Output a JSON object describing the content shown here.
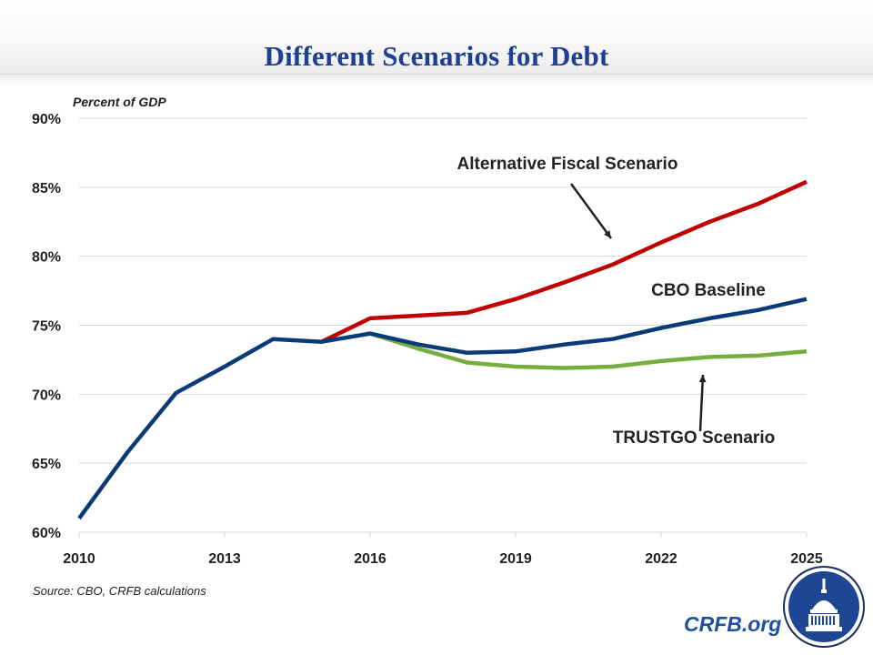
{
  "header": {
    "title": "Different Scenarios for Debt"
  },
  "footer": {
    "source": "Source: CBO, CRFB calculations",
    "brand": "CRFB.org",
    "logo_icon": "capitol-dome-logo-icon"
  },
  "colors": {
    "title": "#1f3f8f",
    "afs": "#c00000",
    "baseline": "#0b3a78",
    "trustgo": "#77ad3f",
    "grid": "#d9d9d9",
    "brand": "#1f4fa0"
  },
  "chart_data": {
    "type": "line",
    "title": "Different Scenarios for Debt",
    "ylabel": "Percent of GDP",
    "xlabel": "",
    "xlim": [
      2010,
      2025
    ],
    "ylim": [
      60,
      90
    ],
    "x_ticks": [
      "2010",
      "2013",
      "2016",
      "2019",
      "2022",
      "2025"
    ],
    "y_ticks": [
      "60%",
      "65%",
      "70%",
      "75%",
      "80%",
      "85%",
      "90%"
    ],
    "grid": true,
    "legend": "none (inline annotations)",
    "series": [
      {
        "name": "Alternative Fiscal Scenario",
        "color": "#c00000",
        "x": [
          2015,
          2016,
          2017,
          2018,
          2019,
          2020,
          2021,
          2022,
          2023,
          2024,
          2025
        ],
        "values": [
          73.8,
          75.5,
          75.7,
          75.9,
          76.9,
          78.1,
          79.4,
          81.0,
          82.5,
          83.8,
          85.4
        ]
      },
      {
        "name": "TRUSTGO Scenario",
        "color": "#77ad3f",
        "x": [
          2016,
          2017,
          2018,
          2019,
          2020,
          2021,
          2022,
          2023,
          2024,
          2025
        ],
        "values": [
          74.4,
          73.3,
          72.3,
          72.0,
          71.9,
          72.0,
          72.4,
          72.7,
          72.8,
          73.1
        ]
      },
      {
        "name": "CBO Baseline",
        "color": "#0b3a78",
        "x": [
          2010,
          2011,
          2012,
          2013,
          2014,
          2015,
          2016,
          2017,
          2018,
          2019,
          2020,
          2021,
          2022,
          2023,
          2024,
          2025
        ],
        "values": [
          61.0,
          65.8,
          70.1,
          72.0,
          74.0,
          73.8,
          74.4,
          73.6,
          73.0,
          73.1,
          73.6,
          74.0,
          74.8,
          75.5,
          76.1,
          76.9
        ]
      }
    ],
    "annotations": [
      {
        "text": "Alternative Fiscal Scenario",
        "arrow": true
      },
      {
        "text": "CBO Baseline",
        "arrow": false
      },
      {
        "text": "TRUSTGO Scenario",
        "arrow": true
      }
    ]
  }
}
